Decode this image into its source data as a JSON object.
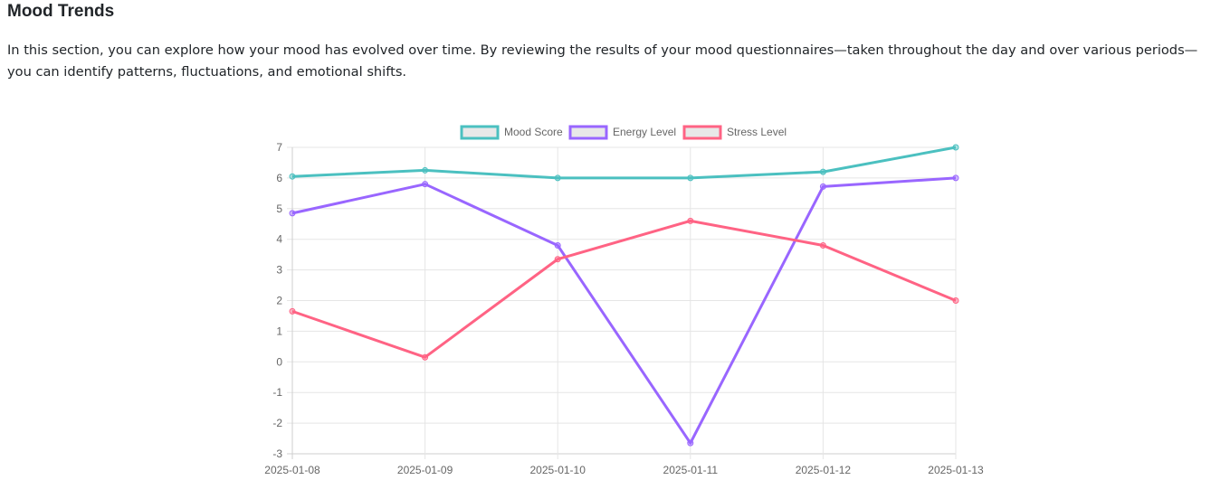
{
  "section": {
    "title": "Mood Trends",
    "description": "In this section, you can explore how your mood has evolved over time. By reviewing the results of your mood questionnaires—taken throughout the day and over various periods—you can identify patterns, fluctuations, and emotional shifts."
  },
  "chart_data": {
    "type": "line",
    "categories": [
      "2025-01-08",
      "2025-01-09",
      "2025-01-10",
      "2025-01-11",
      "2025-01-12",
      "2025-01-13"
    ],
    "ylim": [
      -3,
      7
    ],
    "yticks": [
      -3,
      -2,
      -1,
      0,
      1,
      2,
      3,
      4,
      5,
      6,
      7
    ],
    "grid": true,
    "legend_position": "top",
    "series": [
      {
        "name": "Mood Score",
        "color": "#4bc0c0",
        "values": [
          6.05,
          6.25,
          6,
          6,
          6.2,
          7
        ]
      },
      {
        "name": "Energy Level",
        "color": "#9966ff",
        "values": [
          4.85,
          5.8,
          3.8,
          -2.65,
          5.72,
          6
        ]
      },
      {
        "name": "Stress Level",
        "color": "#ff6384",
        "values": [
          1.65,
          0.15,
          3.35,
          4.6,
          3.8,
          2
        ]
      }
    ]
  }
}
